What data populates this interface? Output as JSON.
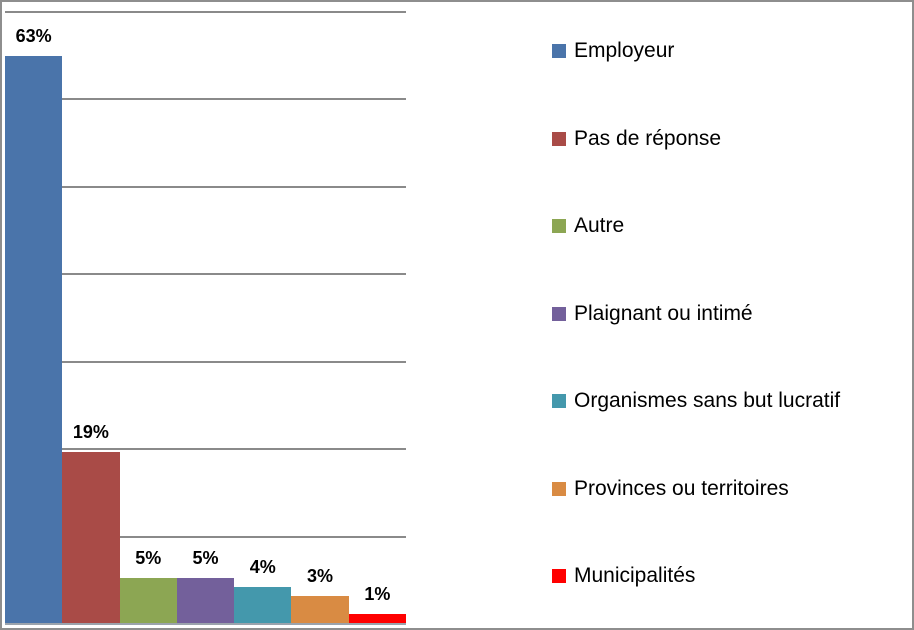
{
  "chart_data": {
    "type": "bar",
    "title": "",
    "xlabel": "",
    "ylabel": "",
    "categories": [
      "Employeur",
      "Pas de réponse",
      "Autre",
      "Plaignant ou intimé",
      "Organismes sans but lucratif",
      "Provinces ou territoires",
      "Municipalités"
    ],
    "values": [
      63,
      19,
      5,
      5,
      4,
      3,
      1
    ],
    "data_labels": [
      "63%",
      "19%",
      "5%",
      "5%",
      "4%",
      "3%",
      "1%"
    ],
    "series_colors": [
      "#4A74AA",
      "#A94B47",
      "#8CA653",
      "#73609B",
      "#4498AC",
      "#D98B43",
      "#FF0000"
    ],
    "ylim": [
      0,
      68
    ],
    "y_tick_labels_visible": false,
    "gridlines": "horizontal",
    "gridline_count": 7,
    "legend_position": "right",
    "colors": {
      "gridline": "#8A8A8A",
      "axis_line": "#9BA3AC",
      "frame_border": "#8E8E8E",
      "background": "#FFFFFF",
      "label_text": "#000000"
    }
  }
}
